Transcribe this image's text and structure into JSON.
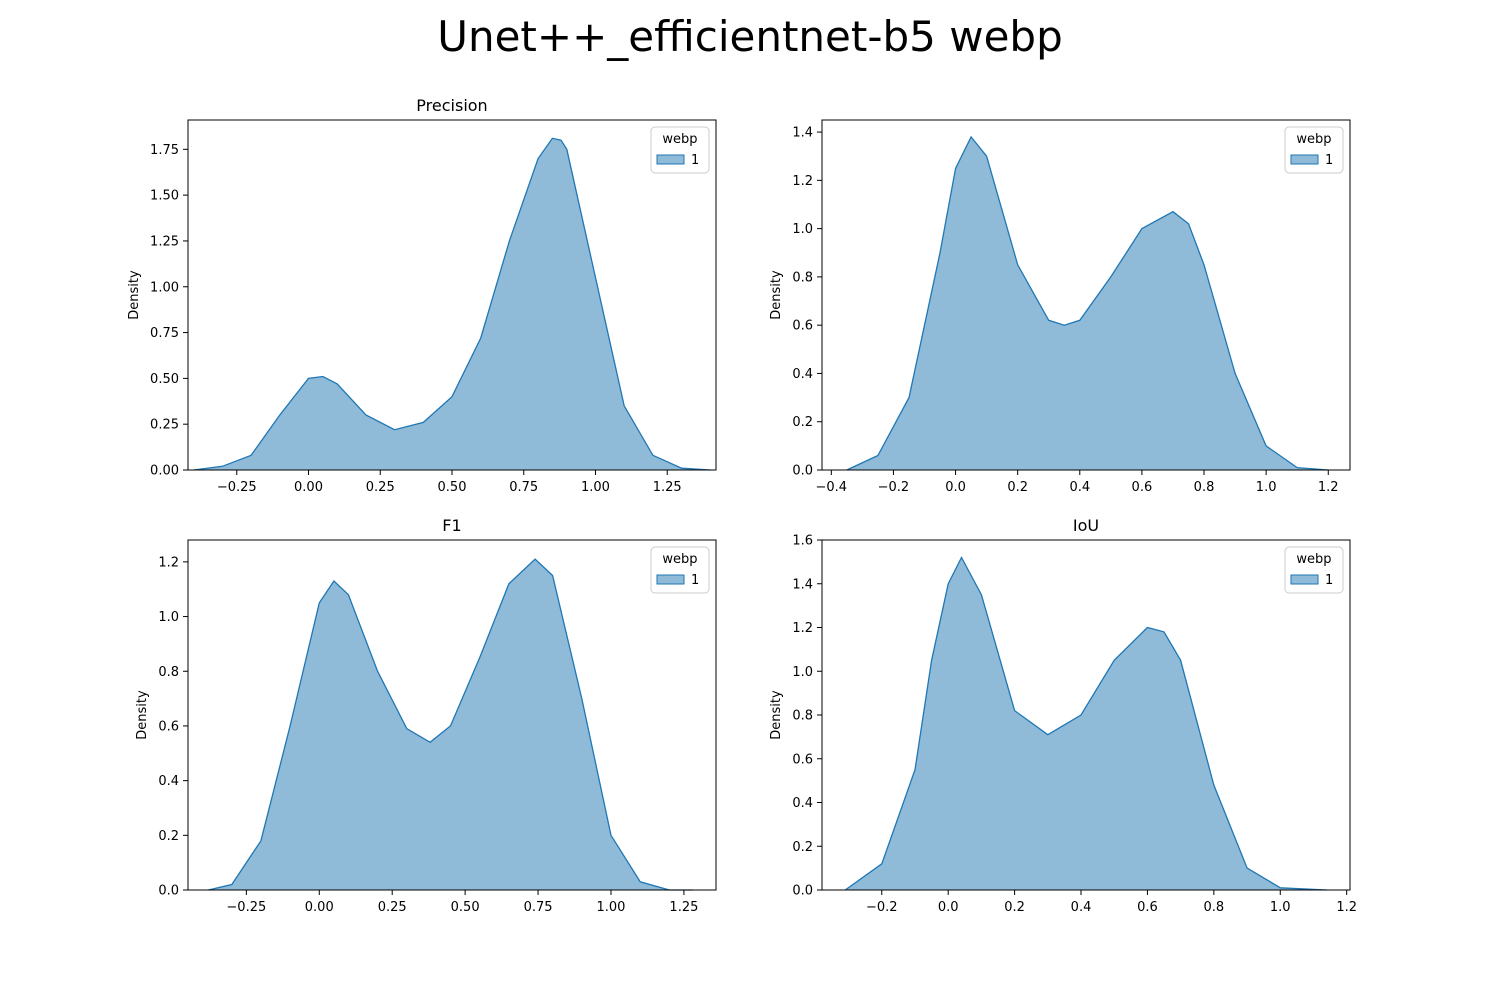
{
  "figure": {
    "title": "Unet++_efficientnet-b5 webp"
  },
  "colors": {
    "fill": "#1f77b4",
    "fill_opacity": 0.5,
    "line": "#1f77b4"
  },
  "chart_data": [
    {
      "type": "area",
      "title": "Precision",
      "xlabel": "",
      "ylabel": "Density",
      "xlim": [
        -0.42,
        1.42
      ],
      "ylim": [
        0,
        1.91
      ],
      "xticks": [
        -0.25,
        0.0,
        0.25,
        0.5,
        0.75,
        1.0,
        1.25
      ],
      "xtick_labels": [
        "−0.25",
        "0.00",
        "0.25",
        "0.50",
        "0.75",
        "1.00",
        "1.25"
      ],
      "yticks": [
        0,
        0.25,
        0.5,
        0.75,
        1.0,
        1.25,
        1.5,
        1.75
      ],
      "ytick_labels": [
        "0.00",
        "0.25",
        "0.50",
        "0.75",
        "1.00",
        "1.25",
        "1.50",
        "1.75"
      ],
      "legend": {
        "title": "webp",
        "entries": [
          "1"
        ],
        "position": "upper right"
      },
      "series": [
        {
          "name": "1",
          "x": [
            -0.4,
            -0.3,
            -0.2,
            -0.1,
            0.0,
            0.05,
            0.1,
            0.2,
            0.3,
            0.4,
            0.5,
            0.6,
            0.7,
            0.8,
            0.85,
            0.88,
            0.9,
            1.0,
            1.1,
            1.2,
            1.3,
            1.4
          ],
          "y": [
            0.0,
            0.02,
            0.08,
            0.3,
            0.5,
            0.51,
            0.47,
            0.3,
            0.22,
            0.26,
            0.4,
            0.72,
            1.25,
            1.7,
            1.81,
            1.8,
            1.75,
            1.05,
            0.35,
            0.08,
            0.01,
            0.0
          ]
        }
      ]
    },
    {
      "type": "area",
      "title": "",
      "xlabel": "",
      "ylabel": "Density",
      "xlim": [
        -0.43,
        1.27
      ],
      "ylim": [
        0,
        1.45
      ],
      "xticks": [
        -0.4,
        -0.2,
        0.0,
        0.2,
        0.4,
        0.6,
        0.8,
        1.0,
        1.2
      ],
      "xtick_labels": [
        "−0.4",
        "−0.2",
        "0.0",
        "0.2",
        "0.4",
        "0.6",
        "0.8",
        "1.0",
        "1.2"
      ],
      "yticks": [
        0,
        0.2,
        0.4,
        0.6,
        0.8,
        1.0,
        1.2,
        1.4
      ],
      "ytick_labels": [
        "0.0",
        "0.2",
        "0.4",
        "0.6",
        "0.8",
        "1.0",
        "1.2",
        "1.4"
      ],
      "legend": {
        "title": "webp",
        "entries": [
          "1"
        ],
        "position": "upper right"
      },
      "series": [
        {
          "name": "1",
          "x": [
            -0.35,
            -0.25,
            -0.15,
            -0.05,
            0.0,
            0.05,
            0.1,
            0.2,
            0.3,
            0.35,
            0.4,
            0.5,
            0.6,
            0.7,
            0.75,
            0.8,
            0.9,
            1.0,
            1.1,
            1.2
          ],
          "y": [
            0.0,
            0.06,
            0.3,
            0.9,
            1.25,
            1.38,
            1.3,
            0.85,
            0.62,
            0.6,
            0.62,
            0.8,
            1.0,
            1.07,
            1.02,
            0.85,
            0.4,
            0.1,
            0.01,
            0.0
          ]
        }
      ]
    },
    {
      "type": "area",
      "title": "F1",
      "xlabel": "",
      "ylabel": "Density",
      "xlim": [
        -0.45,
        1.36
      ],
      "ylim": [
        0,
        1.28
      ],
      "xticks": [
        -0.25,
        0.0,
        0.25,
        0.5,
        0.75,
        1.0,
        1.25
      ],
      "xtick_labels": [
        "−0.25",
        "0.00",
        "0.25",
        "0.50",
        "0.75",
        "1.00",
        "1.25"
      ],
      "yticks": [
        0,
        0.2,
        0.4,
        0.6,
        0.8,
        1.0,
        1.2
      ],
      "ytick_labels": [
        "0.0",
        "0.2",
        "0.4",
        "0.6",
        "0.8",
        "1.0",
        "1.2"
      ],
      "legend": {
        "title": "webp",
        "entries": [
          "1"
        ],
        "position": "upper right"
      },
      "series": [
        {
          "name": "1",
          "x": [
            -0.38,
            -0.3,
            -0.2,
            -0.1,
            0.0,
            0.05,
            0.1,
            0.2,
            0.3,
            0.38,
            0.45,
            0.55,
            0.65,
            0.74,
            0.8,
            0.9,
            1.0,
            1.1,
            1.2,
            1.28
          ],
          "y": [
            0.0,
            0.02,
            0.18,
            0.6,
            1.05,
            1.13,
            1.08,
            0.8,
            0.59,
            0.54,
            0.6,
            0.85,
            1.12,
            1.21,
            1.15,
            0.7,
            0.2,
            0.03,
            0.0,
            0.0
          ]
        }
      ]
    },
    {
      "type": "area",
      "title": "IoU",
      "xlabel": "",
      "ylabel": "Density",
      "xlim": [
        -0.38,
        1.21
      ],
      "ylim": [
        0,
        1.6
      ],
      "xticks": [
        -0.2,
        0.0,
        0.2,
        0.4,
        0.6,
        0.8,
        1.0,
        1.2
      ],
      "xtick_labels": [
        "−0.2",
        "0.0",
        "0.2",
        "0.4",
        "0.6",
        "0.8",
        "1.0",
        "1.2"
      ],
      "yticks": [
        0,
        0.2,
        0.4,
        0.6,
        0.8,
        1.0,
        1.2,
        1.4,
        1.6
      ],
      "ytick_labels": [
        "0.0",
        "0.2",
        "0.4",
        "0.6",
        "0.8",
        "1.0",
        "1.2",
        "1.4",
        "1.6"
      ],
      "legend": {
        "title": "webp",
        "entries": [
          "1"
        ],
        "position": "upper right"
      },
      "series": [
        {
          "name": "1",
          "x": [
            -0.31,
            -0.2,
            -0.1,
            -0.05,
            0.0,
            0.04,
            0.1,
            0.2,
            0.3,
            0.4,
            0.5,
            0.6,
            0.65,
            0.7,
            0.8,
            0.9,
            1.0,
            1.14
          ],
          "y": [
            0.0,
            0.12,
            0.55,
            1.05,
            1.4,
            1.52,
            1.35,
            0.82,
            0.71,
            0.8,
            1.05,
            1.2,
            1.18,
            1.05,
            0.48,
            0.1,
            0.01,
            0.0
          ]
        }
      ]
    }
  ]
}
